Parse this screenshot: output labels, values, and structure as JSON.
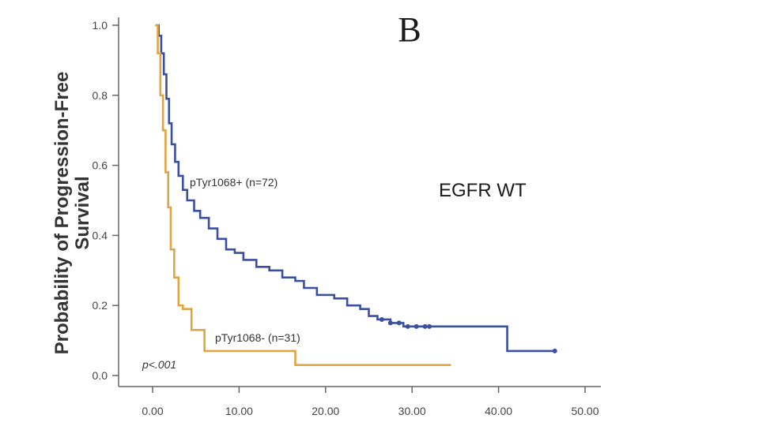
{
  "chart_data": {
    "type": "line",
    "panel_letter": "B",
    "subgroup": "EGFR WT",
    "ylabel_line1": "Probability of Progression-Free",
    "ylabel_line2": "Survival",
    "xlabel": "",
    "xlim": [
      0,
      50
    ],
    "ylim": [
      0,
      1.0
    ],
    "x_ticks": [
      "0.00",
      "10.00",
      "20.00",
      "30.00",
      "40.00",
      "50.00"
    ],
    "y_ticks": [
      "0.0",
      "0.2",
      "0.4",
      "0.6",
      "0.8",
      "1.0"
    ],
    "p_value": "p<.001",
    "series": [
      {
        "name": "pTyr1068+ (n=72)",
        "color": "#3a4fa0",
        "x": [
          0.4,
          0.7,
          1.0,
          1.3,
          1.6,
          1.9,
          2.2,
          2.6,
          3.0,
          3.5,
          4.0,
          4.8,
          5.5,
          6.5,
          7.5,
          8.5,
          9.5,
          10.5,
          12.0,
          13.5,
          15.0,
          16.5,
          17.5,
          19.0,
          21.0,
          22.5,
          24.0,
          25.0,
          26.0,
          27.5,
          29.0,
          30.5,
          32.0,
          41.0,
          46.5
        ],
        "y": [
          1.0,
          0.97,
          0.92,
          0.86,
          0.79,
          0.72,
          0.66,
          0.61,
          0.57,
          0.53,
          0.5,
          0.47,
          0.45,
          0.42,
          0.39,
          0.36,
          0.35,
          0.33,
          0.31,
          0.3,
          0.28,
          0.27,
          0.25,
          0.23,
          0.22,
          0.2,
          0.19,
          0.17,
          0.16,
          0.15,
          0.14,
          0.14,
          0.14,
          0.07,
          0.07
        ],
        "censored_x": [
          26.5,
          27.5,
          28.5,
          29.5,
          30.5,
          31.5,
          32.0,
          46.5
        ]
      },
      {
        "name": "pTyr1068- (n=31)",
        "color": "#e0a443",
        "x": [
          0.3,
          0.6,
          0.9,
          1.2,
          1.5,
          1.8,
          2.1,
          2.5,
          3.0,
          3.5,
          4.5,
          6.0,
          16.5,
          34.5
        ],
        "y": [
          1.0,
          0.92,
          0.8,
          0.7,
          0.58,
          0.48,
          0.36,
          0.28,
          0.2,
          0.19,
          0.13,
          0.07,
          0.03,
          0.03
        ],
        "censored_x": []
      }
    ]
  }
}
